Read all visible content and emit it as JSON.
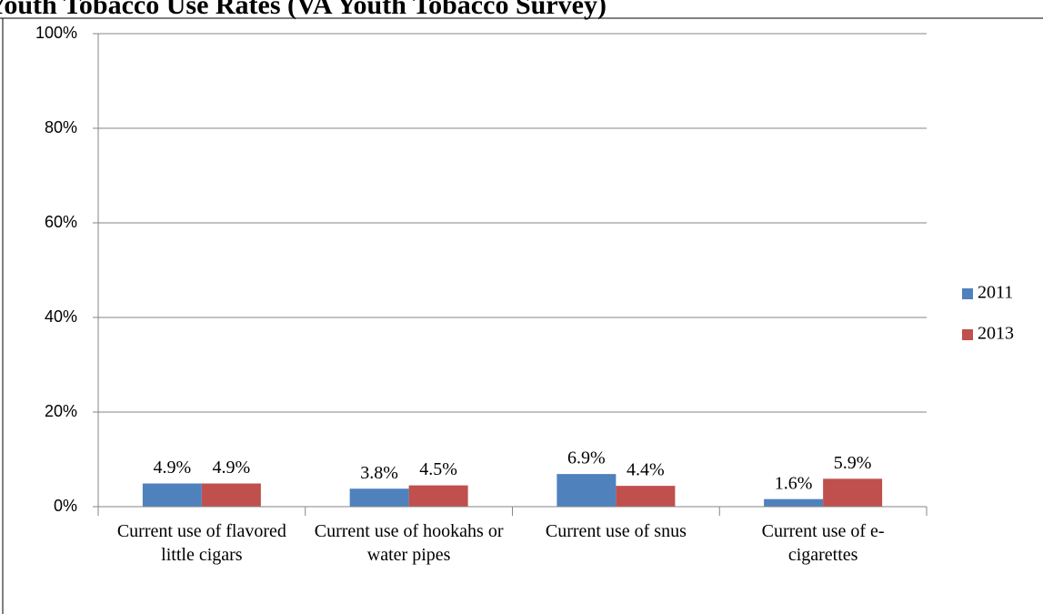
{
  "chart_data": {
    "type": "bar",
    "title": "Youth Tobacco Use Rates (VA Youth Tobacco Survey)",
    "categories": [
      "Current use of flavored little cigars",
      "Current use of hookahs or water pipes",
      "Current use of snus",
      "Current use of e-cigarettes"
    ],
    "series": [
      {
        "name": "2011",
        "color": "#4f81bd",
        "values": [
          4.9,
          3.8,
          6.9,
          1.6
        ],
        "value_labels": [
          "4.9%",
          "3.8%",
          "6.9%",
          "1.6%"
        ]
      },
      {
        "name": "2013",
        "color": "#c0504d",
        "values": [
          4.9,
          4.5,
          4.4,
          5.9
        ],
        "value_labels": [
          "4.9%",
          "4.5%",
          "4.4%",
          "5.9%"
        ]
      }
    ],
    "ylim": [
      0,
      100
    ],
    "yticks": [
      {
        "value": 0,
        "label": "0%"
      },
      {
        "value": 20,
        "label": "20%"
      },
      {
        "value": 40,
        "label": "40%"
      },
      {
        "value": 60,
        "label": "60%"
      },
      {
        "value": 80,
        "label": "80%"
      },
      {
        "value": 100,
        "label": "100%"
      }
    ],
    "grid": true,
    "legend": "right"
  }
}
